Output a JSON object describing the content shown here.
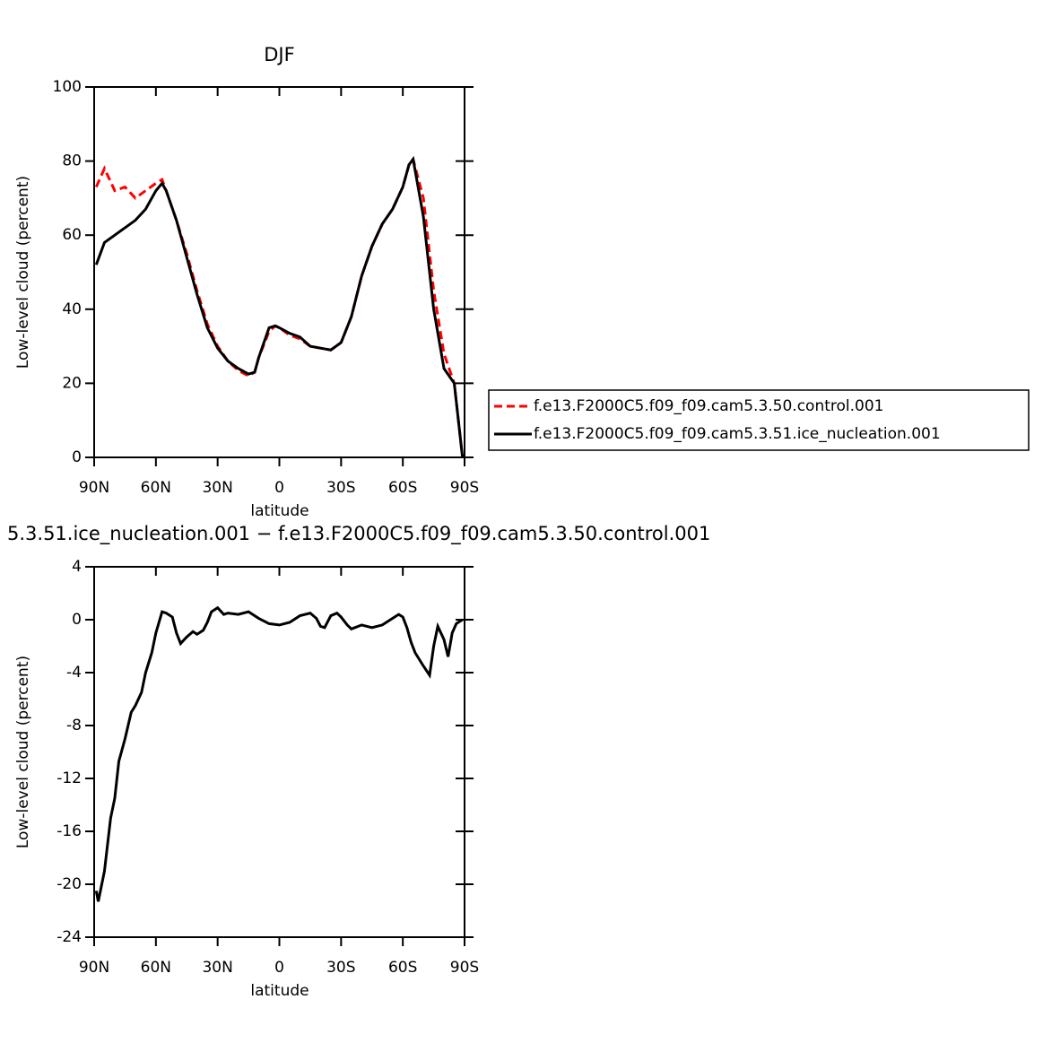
{
  "chart_data": [
    {
      "type": "line",
      "title": "DJF",
      "xlabel": "latitude",
      "ylabel": "Low-level cloud (percent)",
      "x": [
        89,
        85,
        80,
        75,
        70,
        65,
        60,
        57,
        55,
        50,
        45,
        40,
        35,
        30,
        25,
        20,
        15,
        12,
        10,
        5,
        2,
        0,
        -5,
        -10,
        -15,
        -20,
        -25,
        -30,
        -35,
        -40,
        -45,
        -50,
        -55,
        -60,
        -63,
        -65,
        -70,
        -75,
        -80,
        -85,
        -89
      ],
      "series": [
        {
          "name": "f.e13.F2000C5.f09_f09.cam5.3.50.control.001",
          "color": "#ff0000",
          "line_style": "dashed",
          "values": [
            73,
            78,
            72,
            73,
            70,
            72,
            74,
            75,
            72,
            64,
            55,
            45,
            36,
            30,
            26,
            23.5,
            22,
            23,
            27,
            34,
            35.5,
            35,
            33,
            32,
            30,
            29.5,
            29,
            31,
            38,
            49,
            57,
            63,
            67,
            73,
            79,
            80.5,
            70,
            45,
            28,
            20,
            0
          ]
        },
        {
          "name": "f.e13.F2000C5.f09_f09.cam5.3.51.ice_nucleation.001",
          "color": "#000000",
          "line_style": "solid",
          "values": [
            52,
            58,
            60,
            62,
            64,
            67,
            72,
            74,
            72,
            64,
            54,
            44,
            35,
            29.5,
            26,
            24,
            22.5,
            23,
            27,
            35,
            35.5,
            35,
            33.5,
            32.5,
            30,
            29.5,
            29,
            31,
            38,
            49,
            57,
            63,
            67,
            73,
            79,
            80.5,
            65,
            40,
            24,
            20,
            0
          ]
        }
      ],
      "xlim": [
        90,
        -90
      ],
      "xticks": [
        {
          "value": 90,
          "label": "90N"
        },
        {
          "value": 60,
          "label": "60N"
        },
        {
          "value": 30,
          "label": "30N"
        },
        0,
        {
          "value": -30,
          "label": "30S"
        },
        {
          "value": -60,
          "label": "60S"
        },
        {
          "value": -90,
          "label": "90S"
        }
      ],
      "ylim": [
        0,
        100
      ],
      "yticks": [
        0,
        20,
        40,
        60,
        80,
        100
      ],
      "legend": "right"
    },
    {
      "type": "line",
      "title": "5.3.51.ice_nucleation.001 − f.e13.F2000C5.f09_f09.cam5.3.50.control.001",
      "xlabel": "latitude",
      "ylabel": "Low-level cloud (percent)",
      "x": [
        89,
        88,
        85,
        82,
        80,
        78,
        75,
        72,
        70,
        67,
        65,
        62,
        60,
        57,
        55,
        52,
        50,
        48,
        45,
        42,
        40,
        37,
        35,
        33,
        30,
        27,
        25,
        20,
        15,
        10,
        5,
        0,
        -5,
        -10,
        -15,
        -18,
        -20,
        -22,
        -25,
        -28,
        -30,
        -33,
        -35,
        -40,
        -45,
        -50,
        -55,
        -58,
        -60,
        -62,
        -64,
        -66,
        -70,
        -73,
        -75,
        -77,
        -80,
        -82,
        -84,
        -86,
        -89
      ],
      "series": [
        {
          "color": "#000000",
          "line_style": "solid",
          "values": [
            -20.5,
            -21.3,
            -19,
            -15,
            -13.5,
            -10.7,
            -9,
            -7,
            -6.5,
            -5.5,
            -4,
            -2.5,
            -1,
            0.6,
            0.5,
            0.2,
            -1,
            -1.8,
            -1.3,
            -0.9,
            -1.1,
            -0.8,
            -0.2,
            0.6,
            0.9,
            0.4,
            0.5,
            0.4,
            0.6,
            0.1,
            -0.3,
            -0.4,
            -0.2,
            0.3,
            0.5,
            0.1,
            -0.5,
            -0.6,
            0.3,
            0.5,
            0.2,
            -0.4,
            -0.7,
            -0.4,
            -0.6,
            -0.4,
            0.1,
            0.4,
            0.2,
            -0.6,
            -1.7,
            -2.5,
            -3.5,
            -4.2,
            -2,
            -0.5,
            -1.5,
            -2.8,
            -1,
            -0.3,
            0
          ]
        }
      ],
      "xlim": [
        90,
        -90
      ],
      "xticks": [
        {
          "value": 90,
          "label": "90N"
        },
        {
          "value": 60,
          "label": "60N"
        },
        {
          "value": 30,
          "label": "30N"
        },
        0,
        {
          "value": -30,
          "label": "30S"
        },
        {
          "value": -60,
          "label": "60S"
        },
        {
          "value": -90,
          "label": "90S"
        }
      ],
      "ylim": [
        -24,
        4
      ],
      "yticks": [
        -24,
        -20,
        -16,
        -12,
        -8,
        -4,
        0,
        4
      ]
    }
  ]
}
